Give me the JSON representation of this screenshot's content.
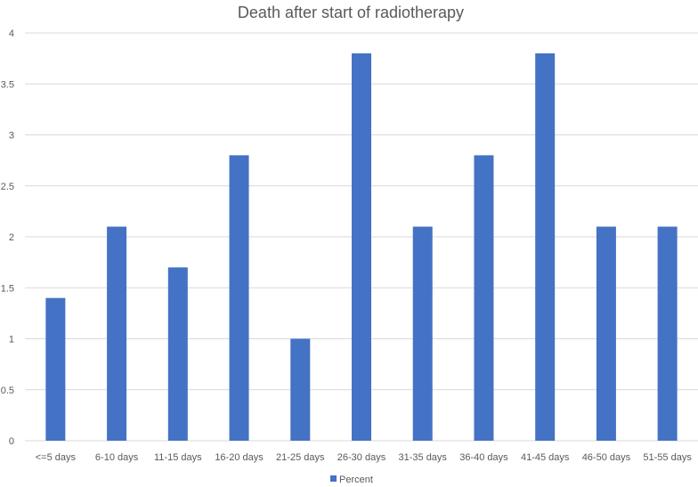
{
  "chart_data": {
    "type": "bar",
    "title": "Death after start of radiotherapy",
    "xlabel": "",
    "ylabel": "",
    "categories": [
      "<=5 days",
      "6-10 days",
      "11-15 days",
      "16-20 days",
      "21-25 days",
      "26-30 days",
      "31-35 days",
      "36-40 days",
      "41-45 days",
      "46-50 days",
      "51-55 days"
    ],
    "series": [
      {
        "name": "Percent",
        "values": [
          1.4,
          2.1,
          1.7,
          2.8,
          1.0,
          3.8,
          2.1,
          2.8,
          3.8,
          2.1,
          2.1
        ]
      }
    ],
    "ylim": [
      0,
      4
    ],
    "yticks": [
      "0",
      "0.5",
      "1",
      "1.5",
      "2",
      "2.5",
      "3",
      "3.5",
      "4"
    ],
    "grid": true,
    "legend_position": "bottom",
    "colors": {
      "bar": "#4472C4",
      "grid": "#d9d9d9",
      "text": "#595959"
    }
  }
}
